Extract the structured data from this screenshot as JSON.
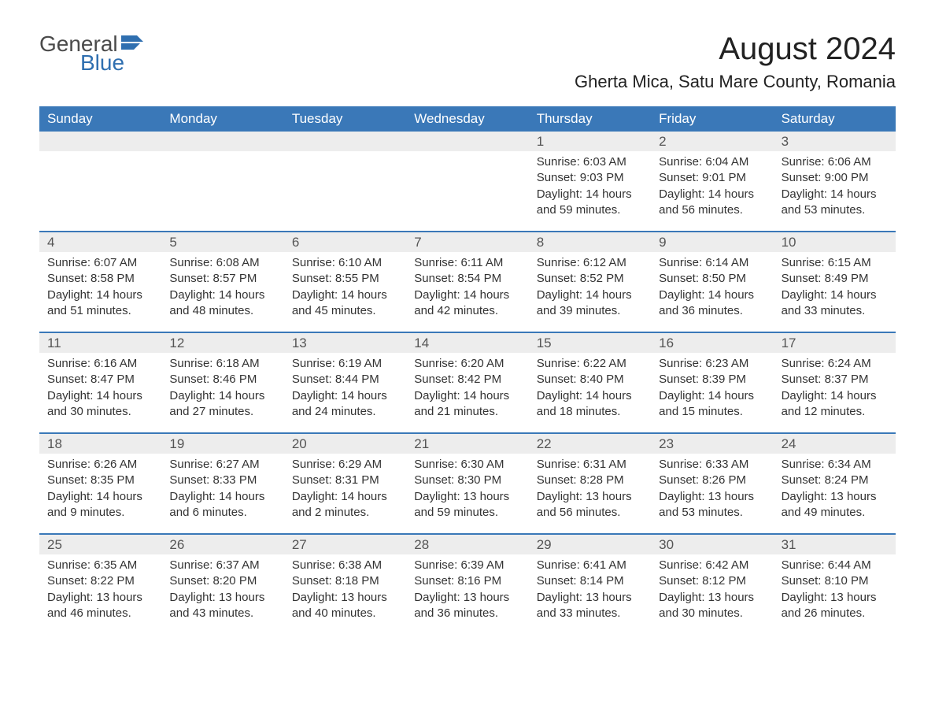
{
  "logo": {
    "text_general": "General",
    "text_blue": "Blue",
    "accent_color": "#2f6fb0"
  },
  "title": "August 2024",
  "location": "Gherta Mica, Satu Mare County, Romania",
  "colors": {
    "header_bg": "#3a78b8",
    "header_text": "#ffffff",
    "daynum_bg": "#ededed",
    "text": "#333333",
    "rule": "#3a78b8"
  },
  "weekdays": [
    "Sunday",
    "Monday",
    "Tuesday",
    "Wednesday",
    "Thursday",
    "Friday",
    "Saturday"
  ],
  "weeks": [
    [
      null,
      null,
      null,
      null,
      {
        "n": "1",
        "sr": "6:03 AM",
        "ss": "9:03 PM",
        "dl": "14 hours and 59 minutes."
      },
      {
        "n": "2",
        "sr": "6:04 AM",
        "ss": "9:01 PM",
        "dl": "14 hours and 56 minutes."
      },
      {
        "n": "3",
        "sr": "6:06 AM",
        "ss": "9:00 PM",
        "dl": "14 hours and 53 minutes."
      }
    ],
    [
      {
        "n": "4",
        "sr": "6:07 AM",
        "ss": "8:58 PM",
        "dl": "14 hours and 51 minutes."
      },
      {
        "n": "5",
        "sr": "6:08 AM",
        "ss": "8:57 PM",
        "dl": "14 hours and 48 minutes."
      },
      {
        "n": "6",
        "sr": "6:10 AM",
        "ss": "8:55 PM",
        "dl": "14 hours and 45 minutes."
      },
      {
        "n": "7",
        "sr": "6:11 AM",
        "ss": "8:54 PM",
        "dl": "14 hours and 42 minutes."
      },
      {
        "n": "8",
        "sr": "6:12 AM",
        "ss": "8:52 PM",
        "dl": "14 hours and 39 minutes."
      },
      {
        "n": "9",
        "sr": "6:14 AM",
        "ss": "8:50 PM",
        "dl": "14 hours and 36 minutes."
      },
      {
        "n": "10",
        "sr": "6:15 AM",
        "ss": "8:49 PM",
        "dl": "14 hours and 33 minutes."
      }
    ],
    [
      {
        "n": "11",
        "sr": "6:16 AM",
        "ss": "8:47 PM",
        "dl": "14 hours and 30 minutes."
      },
      {
        "n": "12",
        "sr": "6:18 AM",
        "ss": "8:46 PM",
        "dl": "14 hours and 27 minutes."
      },
      {
        "n": "13",
        "sr": "6:19 AM",
        "ss": "8:44 PM",
        "dl": "14 hours and 24 minutes."
      },
      {
        "n": "14",
        "sr": "6:20 AM",
        "ss": "8:42 PM",
        "dl": "14 hours and 21 minutes."
      },
      {
        "n": "15",
        "sr": "6:22 AM",
        "ss": "8:40 PM",
        "dl": "14 hours and 18 minutes."
      },
      {
        "n": "16",
        "sr": "6:23 AM",
        "ss": "8:39 PM",
        "dl": "14 hours and 15 minutes."
      },
      {
        "n": "17",
        "sr": "6:24 AM",
        "ss": "8:37 PM",
        "dl": "14 hours and 12 minutes."
      }
    ],
    [
      {
        "n": "18",
        "sr": "6:26 AM",
        "ss": "8:35 PM",
        "dl": "14 hours and 9 minutes."
      },
      {
        "n": "19",
        "sr": "6:27 AM",
        "ss": "8:33 PM",
        "dl": "14 hours and 6 minutes."
      },
      {
        "n": "20",
        "sr": "6:29 AM",
        "ss": "8:31 PM",
        "dl": "14 hours and 2 minutes."
      },
      {
        "n": "21",
        "sr": "6:30 AM",
        "ss": "8:30 PM",
        "dl": "13 hours and 59 minutes."
      },
      {
        "n": "22",
        "sr": "6:31 AM",
        "ss": "8:28 PM",
        "dl": "13 hours and 56 minutes."
      },
      {
        "n": "23",
        "sr": "6:33 AM",
        "ss": "8:26 PM",
        "dl": "13 hours and 53 minutes."
      },
      {
        "n": "24",
        "sr": "6:34 AM",
        "ss": "8:24 PM",
        "dl": "13 hours and 49 minutes."
      }
    ],
    [
      {
        "n": "25",
        "sr": "6:35 AM",
        "ss": "8:22 PM",
        "dl": "13 hours and 46 minutes."
      },
      {
        "n": "26",
        "sr": "6:37 AM",
        "ss": "8:20 PM",
        "dl": "13 hours and 43 minutes."
      },
      {
        "n": "27",
        "sr": "6:38 AM",
        "ss": "8:18 PM",
        "dl": "13 hours and 40 minutes."
      },
      {
        "n": "28",
        "sr": "6:39 AM",
        "ss": "8:16 PM",
        "dl": "13 hours and 36 minutes."
      },
      {
        "n": "29",
        "sr": "6:41 AM",
        "ss": "8:14 PM",
        "dl": "13 hours and 33 minutes."
      },
      {
        "n": "30",
        "sr": "6:42 AM",
        "ss": "8:12 PM",
        "dl": "13 hours and 30 minutes."
      },
      {
        "n": "31",
        "sr": "6:44 AM",
        "ss": "8:10 PM",
        "dl": "13 hours and 26 minutes."
      }
    ]
  ],
  "labels": {
    "sunrise": "Sunrise:",
    "sunset": "Sunset:",
    "daylight": "Daylight:"
  }
}
